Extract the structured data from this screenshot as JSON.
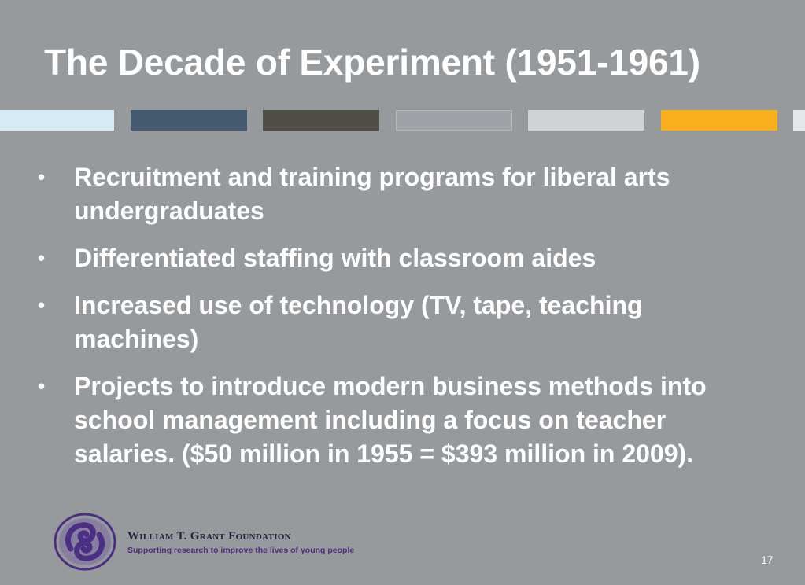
{
  "slide": {
    "title": "The Decade of Experiment (1951-1961)",
    "bullets": [
      "Recruitment and training programs for liberal arts undergraduates",
      "Differentiated staffing with classroom aides",
      "Increased use of technology (TV, tape, teaching machines)",
      "Projects to introduce modern business methods into school management including a focus on teacher salaries. ($50 million in 1955 = $393 million in 2009)."
    ],
    "bullet_glyph": "•",
    "page_number": "17"
  },
  "color_bars": [
    "#d4ebf6",
    "#435a6f",
    "#4f4f48",
    "#9fa2a6",
    "#d2d3d4",
    "#f9b01c",
    "#e6e7e8"
  ],
  "footer": {
    "logo_name": "william-t-grant-foundation-logo",
    "foundation_name": "William T. Grant Foundation",
    "tagline": "Supporting research to improve the lives of young people"
  },
  "colors": {
    "background": "#979a9d",
    "text": "#ffffff",
    "logo_purple": "#4b2f84"
  }
}
